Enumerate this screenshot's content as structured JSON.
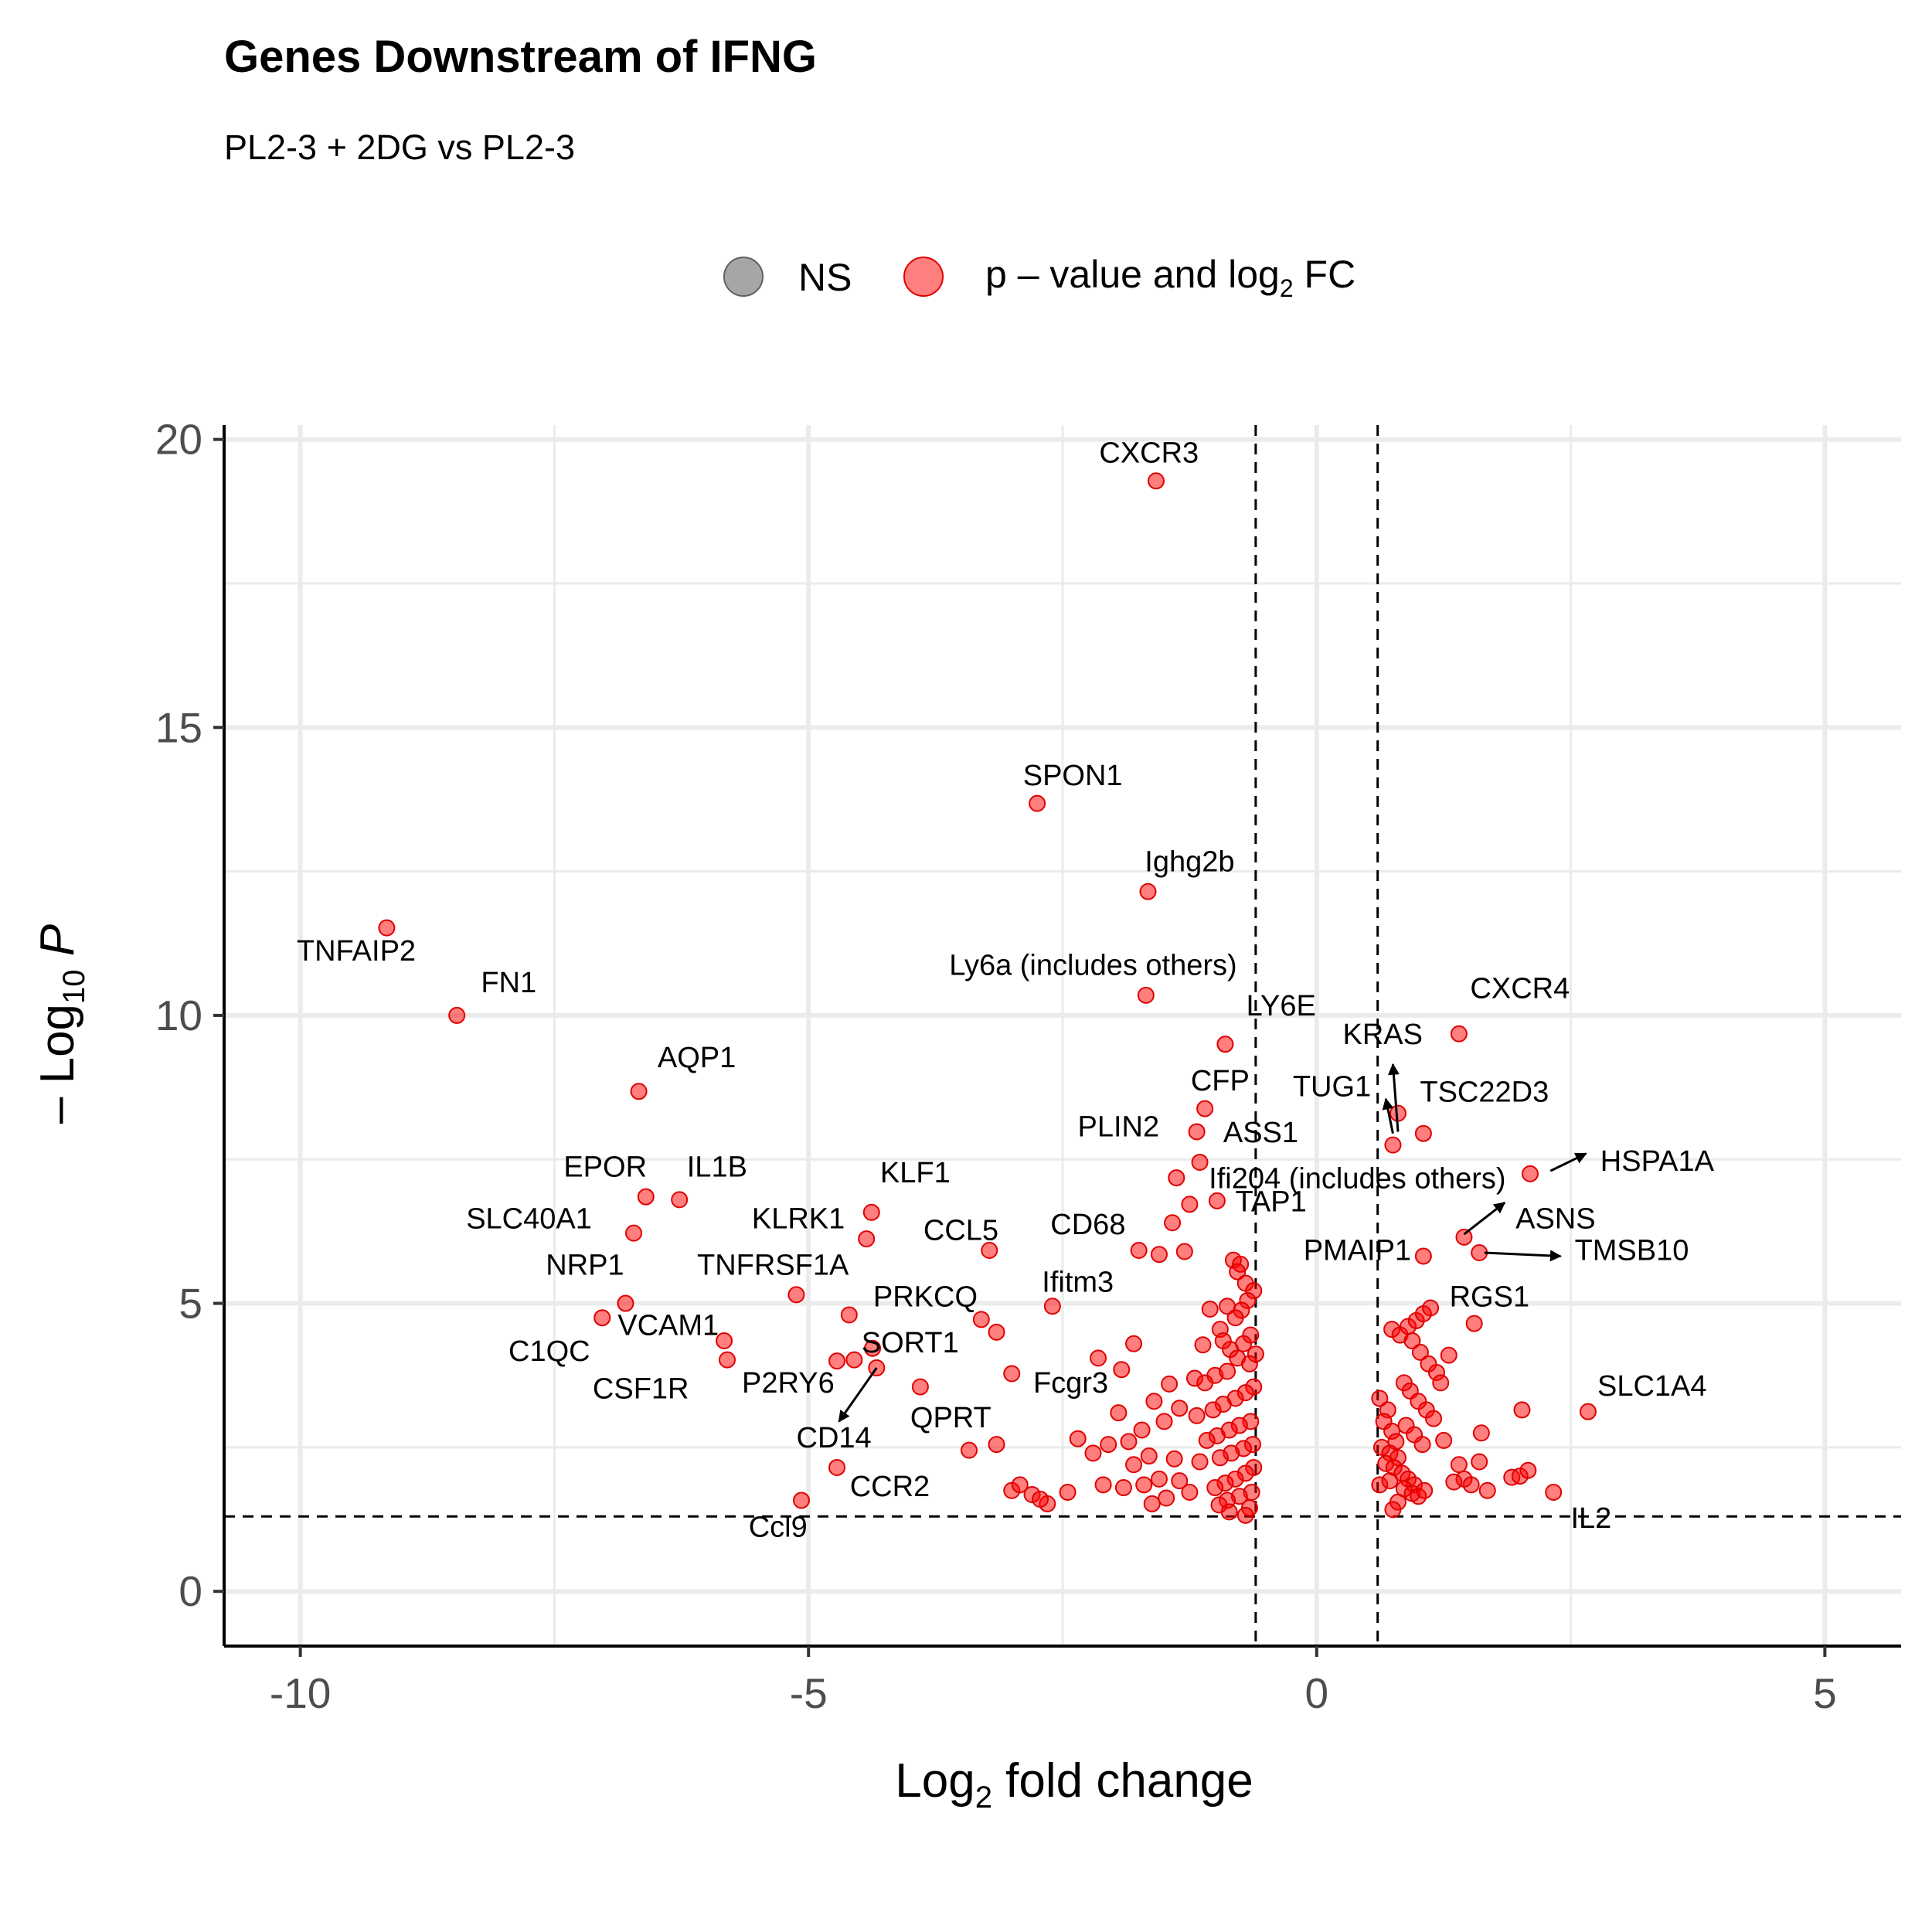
{
  "chart_data": {
    "type": "scatter",
    "title": "Genes Downstream of IFNG",
    "subtitle": "PL2-3 + 2DG vs PL2-3",
    "xlabel": "Log2 fold change",
    "ylabel": "-Log10 P",
    "xlim": [
      -10.75,
      5.75
    ],
    "ylim": [
      -0.95,
      20.25
    ],
    "xticks": [
      -10,
      -5,
      0,
      5
    ],
    "yticks": [
      0,
      5,
      10,
      15,
      20
    ],
    "grid": true,
    "thresholds": {
      "log2fc": [
        -0.6,
        0.6
      ],
      "neg_log10_p": 1.3
    },
    "legend": {
      "position": "top",
      "entries": [
        {
          "label": "NS",
          "color": "#808080"
        },
        {
          "label": "p – value and log2 FC",
          "color": "#ff0000"
        }
      ]
    },
    "colors": {
      "point": "#ff0000",
      "ns": "#808080",
      "grid": "#ebebeb"
    },
    "labeled_points": [
      {
        "gene": "CXCR3",
        "x": -1.58,
        "y": 19.28
      },
      {
        "gene": "SPON1",
        "x": -2.75,
        "y": 13.68
      },
      {
        "gene": "Ighg2b",
        "x": -1.66,
        "y": 12.15
      },
      {
        "gene": "TNFAIP2",
        "x": -9.15,
        "y": 11.52
      },
      {
        "gene": "Ly6a (includes others)",
        "x": -1.68,
        "y": 10.35
      },
      {
        "gene": "FN1",
        "x": -8.46,
        "y": 10.0
      },
      {
        "gene": "CXCR4",
        "x": 1.4,
        "y": 9.68
      },
      {
        "gene": "LY6E",
        "x": -0.9,
        "y": 9.5
      },
      {
        "gene": "AQP1",
        "x": -6.67,
        "y": 8.68
      },
      {
        "gene": "KRAS",
        "x": 0.8,
        "y": 8.3
      },
      {
        "gene": "CFP",
        "x": -1.1,
        "y": 8.38
      },
      {
        "gene": "TUG1",
        "x": 0.75,
        "y": 7.75
      },
      {
        "gene": "TSC22D3",
        "x": 1.05,
        "y": 7.95
      },
      {
        "gene": "PLIN2",
        "x": -1.18,
        "y": 7.98
      },
      {
        "gene": "ASS1",
        "x": -1.15,
        "y": 7.45
      },
      {
        "gene": "HSPA1A",
        "x": 2.1,
        "y": 7.25
      },
      {
        "gene": "Ifi204 (includes others)",
        "x": -1.38,
        "y": 7.18
      },
      {
        "gene": "EPOR",
        "x": -6.6,
        "y": 6.85
      },
      {
        "gene": "IL1B",
        "x": -6.27,
        "y": 6.8
      },
      {
        "gene": "TAP1",
        "x": -0.98,
        "y": 6.78
      },
      {
        "gene": "ASNS",
        "x": 1.45,
        "y": 6.15
      },
      {
        "gene": "KLF1",
        "x": -4.38,
        "y": 6.58
      },
      {
        "gene": "KLRK1",
        "x": -4.43,
        "y": 6.12
      },
      {
        "gene": "SLC40A1",
        "x": -6.72,
        "y": 6.22
      },
      {
        "gene": "CCL5",
        "x": -3.22,
        "y": 5.92
      },
      {
        "gene": "CD68",
        "x": -1.75,
        "y": 5.92
      },
      {
        "gene": "TMSB10",
        "x": 1.6,
        "y": 5.88
      },
      {
        "gene": "PMAIP1",
        "x": 1.05,
        "y": 5.82
      },
      {
        "gene": "NRP1",
        "x": -6.8,
        "y": 5.0
      },
      {
        "gene": "TNFRSF1A",
        "x": -5.12,
        "y": 5.15
      },
      {
        "gene": "Ifitm3",
        "x": -2.6,
        "y": 4.95
      },
      {
        "gene": "RGS1",
        "x": 1.55,
        "y": 4.65
      },
      {
        "gene": "PRKCQ",
        "x": -4.6,
        "y": 4.8
      },
      {
        "gene": "VCAM1",
        "x": -7.03,
        "y": 4.75
      },
      {
        "gene": "C1QC",
        "x": -5.83,
        "y": 4.35
      },
      {
        "gene": "SORT1",
        "x": -4.37,
        "y": 4.22
      },
      {
        "gene": "CSF1R",
        "x": -5.8,
        "y": 4.02
      },
      {
        "gene": "P2RY6",
        "x": -4.55,
        "y": 4.02
      },
      {
        "gene": "CD14",
        "x": -4.33,
        "y": 3.88
      },
      {
        "gene": "SLC1A4",
        "x": 2.67,
        "y": 3.12
      },
      {
        "gene": "Fcgr3",
        "x": -3.0,
        "y": 3.78
      },
      {
        "gene": "QPRT",
        "x": -3.15,
        "y": 2.55
      },
      {
        "gene": "CCR2",
        "x": -4.72,
        "y": 2.15
      },
      {
        "gene": "Ccl9",
        "x": -5.07,
        "y": 1.58
      },
      {
        "gene": "IL2",
        "x": 2.33,
        "y": 1.72
      }
    ],
    "other_points": [
      [
        -0.82,
        5.75
      ],
      [
        -0.75,
        5.68
      ],
      [
        -0.78,
        5.55
      ],
      [
        -0.7,
        5.35
      ],
      [
        -0.62,
        5.22
      ],
      [
        -0.68,
        5.05
      ],
      [
        -0.74,
        4.88
      ],
      [
        -0.8,
        4.75
      ],
      [
        -0.88,
        4.95
      ],
      [
        -1.05,
        4.9
      ],
      [
        -0.95,
        4.55
      ],
      [
        -0.65,
        4.45
      ],
      [
        -0.72,
        4.3
      ],
      [
        -0.85,
        4.2
      ],
      [
        -0.92,
        4.35
      ],
      [
        -1.12,
        4.28
      ],
      [
        -0.6,
        4.12
      ],
      [
        -0.78,
        4.05
      ],
      [
        -0.66,
        3.95
      ],
      [
        -0.88,
        3.82
      ],
      [
        -1.0,
        3.75
      ],
      [
        -1.2,
        3.7
      ],
      [
        -1.1,
        3.62
      ],
      [
        -0.62,
        3.55
      ],
      [
        -0.7,
        3.45
      ],
      [
        -0.8,
        3.35
      ],
      [
        -0.92,
        3.25
      ],
      [
        -1.02,
        3.15
      ],
      [
        -1.18,
        3.05
      ],
      [
        -0.65,
        2.95
      ],
      [
        -0.76,
        2.88
      ],
      [
        -0.86,
        2.8
      ],
      [
        -0.98,
        2.7
      ],
      [
        -1.08,
        2.62
      ],
      [
        -0.63,
        2.55
      ],
      [
        -0.72,
        2.48
      ],
      [
        -0.84,
        2.4
      ],
      [
        -0.95,
        2.32
      ],
      [
        -1.15,
        2.25
      ],
      [
        -0.62,
        2.15
      ],
      [
        -0.7,
        2.05
      ],
      [
        -0.8,
        1.95
      ],
      [
        -0.9,
        1.88
      ],
      [
        -1.0,
        1.8
      ],
      [
        -0.64,
        1.72
      ],
      [
        -0.76,
        1.65
      ],
      [
        -0.88,
        1.58
      ],
      [
        -0.96,
        1.5
      ],
      [
        -0.66,
        1.45
      ],
      [
        -0.86,
        1.38
      ],
      [
        -0.7,
        1.32
      ],
      [
        -1.3,
        5.9
      ],
      [
        -1.42,
        6.4
      ],
      [
        -1.25,
        6.72
      ],
      [
        -1.55,
        5.85
      ],
      [
        -1.8,
        4.3
      ],
      [
        -1.92,
        3.85
      ],
      [
        -1.45,
        3.6
      ],
      [
        -1.6,
        3.3
      ],
      [
        -1.35,
        3.18
      ],
      [
        -1.5,
        2.95
      ],
      [
        -1.95,
        3.1
      ],
      [
        -1.72,
        2.8
      ],
      [
        -1.85,
        2.6
      ],
      [
        -2.05,
        2.55
      ],
      [
        -2.2,
        2.4
      ],
      [
        -1.65,
        2.35
      ],
      [
        -1.4,
        2.3
      ],
      [
        -1.8,
        2.2
      ],
      [
        -1.55,
        1.95
      ],
      [
        -1.7,
        1.85
      ],
      [
        -1.9,
        1.8
      ],
      [
        -1.35,
        1.92
      ],
      [
        -1.25,
        1.72
      ],
      [
        -1.48,
        1.62
      ],
      [
        -1.62,
        1.52
      ],
      [
        -2.15,
        4.05
      ],
      [
        -2.35,
        2.65
      ],
      [
        -2.45,
        1.72
      ],
      [
        -2.65,
        1.52
      ],
      [
        -2.8,
        1.68
      ],
      [
        -3.0,
        1.75
      ],
      [
        -2.72,
        1.6
      ],
      [
        -2.92,
        1.85
      ],
      [
        -3.42,
        2.45
      ],
      [
        -3.3,
        4.72
      ],
      [
        -3.15,
        4.5
      ],
      [
        -3.9,
        3.55
      ],
      [
        -4.72,
        4.0
      ],
      [
        -2.1,
        1.85
      ],
      [
        0.62,
        3.35
      ],
      [
        0.7,
        3.15
      ],
      [
        0.66,
        2.95
      ],
      [
        0.74,
        2.78
      ],
      [
        0.78,
        2.6
      ],
      [
        0.64,
        2.5
      ],
      [
        0.72,
        2.4
      ],
      [
        0.8,
        2.32
      ],
      [
        0.68,
        2.22
      ],
      [
        0.76,
        2.15
      ],
      [
        0.84,
        2.05
      ],
      [
        0.9,
        1.95
      ],
      [
        0.96,
        1.85
      ],
      [
        0.86,
        1.78
      ],
      [
        0.94,
        1.7
      ],
      [
        1.0,
        1.65
      ],
      [
        1.06,
        1.75
      ],
      [
        0.62,
        1.85
      ],
      [
        0.72,
        1.92
      ],
      [
        0.8,
        1.55
      ],
      [
        0.75,
        1.42
      ],
      [
        0.74,
        4.55
      ],
      [
        0.82,
        4.45
      ],
      [
        0.9,
        4.6
      ],
      [
        0.98,
        4.7
      ],
      [
        1.05,
        4.82
      ],
      [
        1.12,
        4.92
      ],
      [
        0.94,
        4.35
      ],
      [
        1.02,
        4.15
      ],
      [
        1.1,
        3.95
      ],
      [
        1.18,
        3.8
      ],
      [
        0.86,
        3.62
      ],
      [
        0.92,
        3.48
      ],
      [
        1.0,
        3.3
      ],
      [
        1.08,
        3.15
      ],
      [
        1.15,
        3.0
      ],
      [
        0.88,
        2.88
      ],
      [
        0.96,
        2.72
      ],
      [
        1.04,
        2.55
      ],
      [
        1.22,
        3.62
      ],
      [
        1.3,
        4.1
      ],
      [
        1.4,
        2.2
      ],
      [
        1.45,
        1.95
      ],
      [
        1.52,
        1.85
      ],
      [
        1.6,
        2.25
      ],
      [
        1.62,
        2.75
      ],
      [
        1.68,
        1.75
      ],
      [
        1.92,
        1.98
      ],
      [
        2.0,
        2.0
      ],
      [
        2.08,
        2.1
      ],
      [
        2.02,
        3.15
      ],
      [
        1.25,
        2.62
      ],
      [
        1.35,
        1.9
      ]
    ]
  }
}
